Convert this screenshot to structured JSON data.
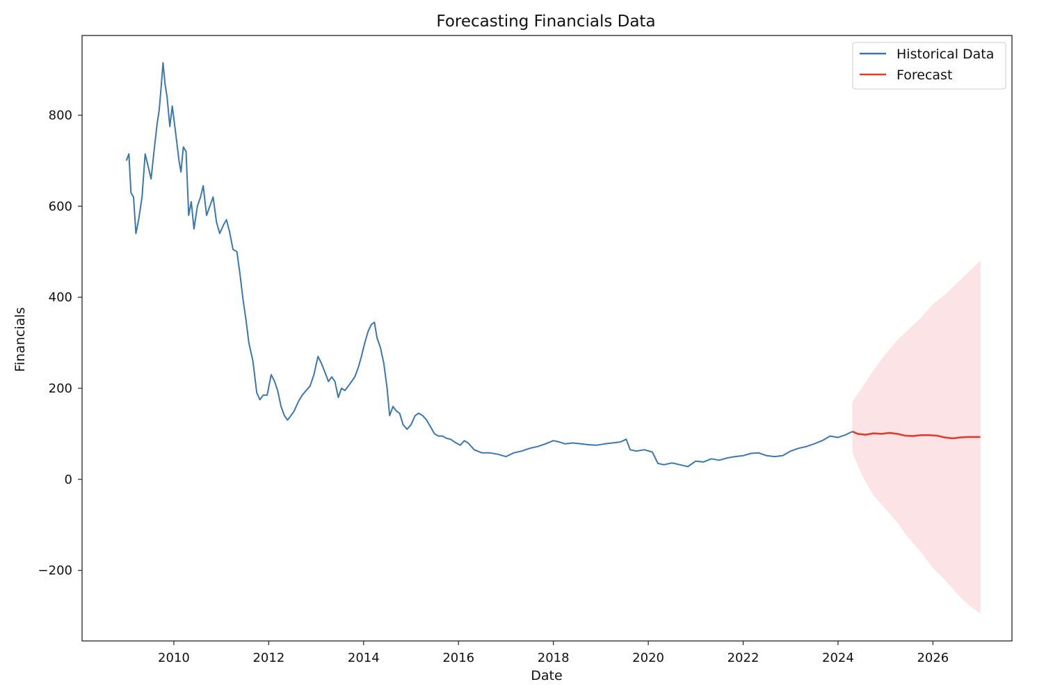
{
  "chart_data": {
    "type": "line",
    "title": "Forecasting Financials Data",
    "xlabel": "Date",
    "ylabel": "Financials",
    "xlim": [
      "2008-01-25",
      "2027-09-01"
    ],
    "ylim": [
      -355,
      975
    ],
    "x_ticks": [
      "2010",
      "2012",
      "2014",
      "2016",
      "2018",
      "2020",
      "2022",
      "2024",
      "2026"
    ],
    "y_ticks": [
      -200,
      0,
      200,
      400,
      600,
      800
    ],
    "y_tick_labels": [
      "−200",
      "0",
      "200",
      "400",
      "600",
      "800"
    ],
    "grid": false,
    "legend_position": "top-right",
    "series": [
      {
        "name": "Historical Data",
        "color": "#3a76b2",
        "points": [
          [
            "2009-01-01",
            700
          ],
          [
            "2009-01-20",
            715
          ],
          [
            "2009-02-05",
            630
          ],
          [
            "2009-02-25",
            620
          ],
          [
            "2009-03-15",
            540
          ],
          [
            "2009-04-05",
            570
          ],
          [
            "2009-05-01",
            620
          ],
          [
            "2009-05-25",
            715
          ],
          [
            "2009-06-15",
            690
          ],
          [
            "2009-07-10",
            660
          ],
          [
            "2009-08-01",
            720
          ],
          [
            "2009-08-25",
            780
          ],
          [
            "2009-09-10",
            810
          ],
          [
            "2009-09-25",
            860
          ],
          [
            "2009-10-10",
            915
          ],
          [
            "2009-10-25",
            870
          ],
          [
            "2009-11-10",
            840
          ],
          [
            "2009-12-01",
            775
          ],
          [
            "2009-12-20",
            820
          ],
          [
            "2010-01-15",
            760
          ],
          [
            "2010-02-10",
            700
          ],
          [
            "2010-02-25",
            675
          ],
          [
            "2010-03-15",
            730
          ],
          [
            "2010-04-05",
            720
          ],
          [
            "2010-04-25",
            580
          ],
          [
            "2010-05-15",
            610
          ],
          [
            "2010-06-05",
            550
          ],
          [
            "2010-07-01",
            600
          ],
          [
            "2010-07-25",
            620
          ],
          [
            "2010-08-15",
            645
          ],
          [
            "2010-09-10",
            580
          ],
          [
            "2010-10-05",
            600
          ],
          [
            "2010-10-30",
            620
          ],
          [
            "2010-11-25",
            565
          ],
          [
            "2010-12-20",
            540
          ],
          [
            "2011-01-20",
            560
          ],
          [
            "2011-02-10",
            570
          ],
          [
            "2011-03-05",
            545
          ],
          [
            "2011-04-01",
            505
          ],
          [
            "2011-05-01",
            500
          ],
          [
            "2011-05-25",
            450
          ],
          [
            "2011-06-15",
            400
          ],
          [
            "2011-07-10",
            350
          ],
          [
            "2011-08-01",
            300
          ],
          [
            "2011-09-01",
            260
          ],
          [
            "2011-10-01",
            190
          ],
          [
            "2011-10-25",
            175
          ],
          [
            "2011-11-20",
            185
          ],
          [
            "2011-12-20",
            185
          ],
          [
            "2012-01-20",
            230
          ],
          [
            "2012-02-15",
            215
          ],
          [
            "2012-03-10",
            195
          ],
          [
            "2012-04-05",
            160
          ],
          [
            "2012-05-01",
            140
          ],
          [
            "2012-05-25",
            130
          ],
          [
            "2012-06-20",
            140
          ],
          [
            "2012-07-15",
            150
          ],
          [
            "2012-08-15",
            170
          ],
          [
            "2012-09-15",
            185
          ],
          [
            "2012-10-15",
            195
          ],
          [
            "2012-11-15",
            205
          ],
          [
            "2012-12-15",
            230
          ],
          [
            "2013-01-15",
            270
          ],
          [
            "2013-02-10",
            255
          ],
          [
            "2013-03-10",
            235
          ],
          [
            "2013-04-05",
            215
          ],
          [
            "2013-05-01",
            225
          ],
          [
            "2013-05-25",
            215
          ],
          [
            "2013-06-20",
            180
          ],
          [
            "2013-07-15",
            200
          ],
          [
            "2013-08-10",
            195
          ],
          [
            "2013-09-05",
            205
          ],
          [
            "2013-10-01",
            215
          ],
          [
            "2013-10-25",
            225
          ],
          [
            "2013-11-20",
            245
          ],
          [
            "2013-12-15",
            270
          ],
          [
            "2014-01-10",
            300
          ],
          [
            "2014-02-05",
            325
          ],
          [
            "2014-03-01",
            340
          ],
          [
            "2014-03-25",
            345
          ],
          [
            "2014-04-15",
            310
          ],
          [
            "2014-05-10",
            290
          ],
          [
            "2014-06-05",
            255
          ],
          [
            "2014-07-01",
            200
          ],
          [
            "2014-07-20",
            140
          ],
          [
            "2014-08-15",
            160
          ],
          [
            "2014-09-10",
            150
          ],
          [
            "2014-10-05",
            145
          ],
          [
            "2014-11-01",
            120
          ],
          [
            "2014-12-01",
            110
          ],
          [
            "2015-01-01",
            120
          ],
          [
            "2015-02-01",
            140
          ],
          [
            "2015-03-01",
            145
          ],
          [
            "2015-04-01",
            140
          ],
          [
            "2015-05-01",
            130
          ],
          [
            "2015-06-01",
            115
          ],
          [
            "2015-07-01",
            100
          ],
          [
            "2015-08-01",
            95
          ],
          [
            "2015-09-01",
            95
          ],
          [
            "2015-10-01",
            90
          ],
          [
            "2015-11-01",
            88
          ],
          [
            "2015-12-01",
            82
          ],
          [
            "2016-01-15",
            75
          ],
          [
            "2016-02-15",
            85
          ],
          [
            "2016-03-15",
            80
          ],
          [
            "2016-05-01",
            65
          ],
          [
            "2016-07-01",
            58
          ],
          [
            "2016-09-01",
            58
          ],
          [
            "2016-11-01",
            55
          ],
          [
            "2017-01-01",
            50
          ],
          [
            "2017-03-01",
            58
          ],
          [
            "2017-05-01",
            62
          ],
          [
            "2017-07-01",
            68
          ],
          [
            "2017-09-01",
            72
          ],
          [
            "2017-11-01",
            78
          ],
          [
            "2018-01-01",
            85
          ],
          [
            "2018-02-15",
            82
          ],
          [
            "2018-04-01",
            78
          ],
          [
            "2018-06-01",
            80
          ],
          [
            "2018-08-01",
            78
          ],
          [
            "2018-10-01",
            76
          ],
          [
            "2018-12-01",
            75
          ],
          [
            "2019-02-01",
            78
          ],
          [
            "2019-04-01",
            80
          ],
          [
            "2019-06-01",
            82
          ],
          [
            "2019-07-15",
            88
          ],
          [
            "2019-08-15",
            65
          ],
          [
            "2019-10-01",
            62
          ],
          [
            "2019-12-01",
            65
          ],
          [
            "2020-02-01",
            60
          ],
          [
            "2020-03-15",
            35
          ],
          [
            "2020-05-01",
            32
          ],
          [
            "2020-07-01",
            36
          ],
          [
            "2020-09-01",
            32
          ],
          [
            "2020-11-01",
            28
          ],
          [
            "2021-01-01",
            40
          ],
          [
            "2021-03-01",
            38
          ],
          [
            "2021-05-01",
            45
          ],
          [
            "2021-07-01",
            42
          ],
          [
            "2021-09-01",
            47
          ],
          [
            "2021-11-01",
            50
          ],
          [
            "2022-01-01",
            52
          ],
          [
            "2022-03-01",
            57
          ],
          [
            "2022-05-01",
            58
          ],
          [
            "2022-07-01",
            52
          ],
          [
            "2022-09-01",
            50
          ],
          [
            "2022-11-01",
            52
          ],
          [
            "2023-01-01",
            62
          ],
          [
            "2023-03-01",
            68
          ],
          [
            "2023-05-01",
            72
          ],
          [
            "2023-07-01",
            78
          ],
          [
            "2023-09-01",
            85
          ],
          [
            "2023-11-01",
            95
          ],
          [
            "2024-01-01",
            92
          ],
          [
            "2024-03-01",
            98
          ],
          [
            "2024-04-20",
            105
          ]
        ]
      },
      {
        "name": "Forecast",
        "color": "#e33b2e",
        "points": [
          [
            "2024-04-20",
            105
          ],
          [
            "2024-06-01",
            100
          ],
          [
            "2024-08-01",
            98
          ],
          [
            "2024-10-01",
            101
          ],
          [
            "2024-12-01",
            100
          ],
          [
            "2025-02-01",
            102
          ],
          [
            "2025-04-01",
            100
          ],
          [
            "2025-06-01",
            96
          ],
          [
            "2025-08-01",
            95
          ],
          [
            "2025-10-01",
            97
          ],
          [
            "2025-12-01",
            97
          ],
          [
            "2026-02-01",
            96
          ],
          [
            "2026-04-01",
            92
          ],
          [
            "2026-06-01",
            90
          ],
          [
            "2026-08-01",
            92
          ],
          [
            "2026-10-01",
            93
          ],
          [
            "2027-01-01",
            93
          ]
        ]
      }
    ],
    "confidence_band": {
      "color": "#fbe3e6",
      "points": [
        [
          "2024-04-20",
          170,
          60
        ],
        [
          "2024-07-01",
          200,
          10
        ],
        [
          "2024-10-01",
          240,
          -35
        ],
        [
          "2025-01-01",
          275,
          -65
        ],
        [
          "2025-04-01",
          305,
          -95
        ],
        [
          "2025-07-01",
          330,
          -130
        ],
        [
          "2025-10-01",
          355,
          -160
        ],
        [
          "2026-01-01",
          385,
          -195
        ],
        [
          "2026-04-01",
          405,
          -220
        ],
        [
          "2026-07-01",
          430,
          -250
        ],
        [
          "2026-10-01",
          455,
          -275
        ],
        [
          "2027-01-01",
          480,
          -295
        ]
      ]
    }
  }
}
